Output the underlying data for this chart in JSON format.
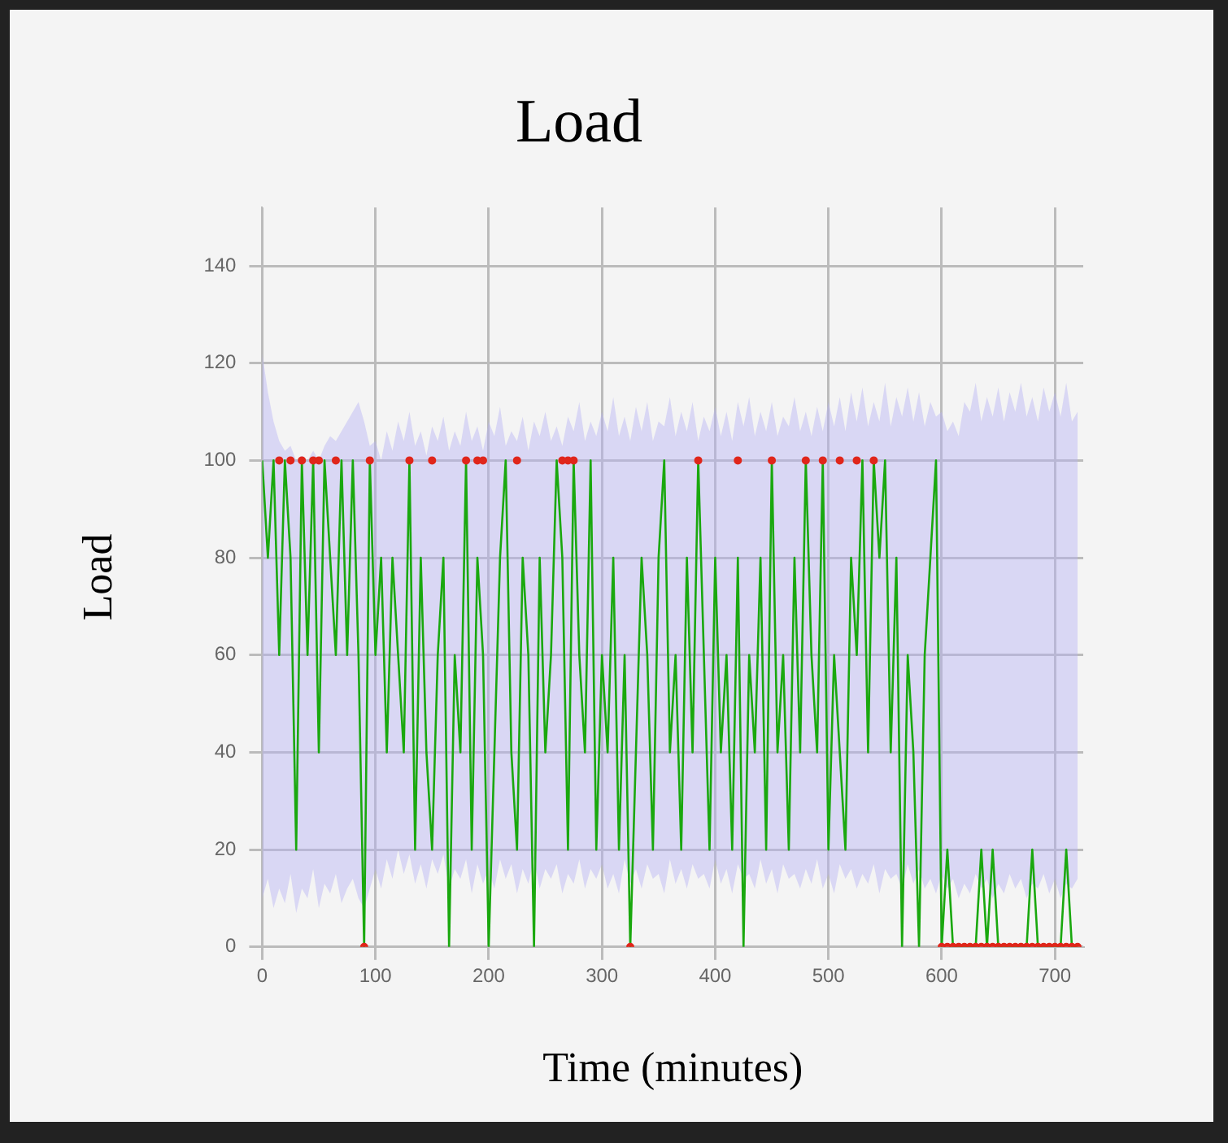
{
  "chart_data": {
    "type": "line",
    "title": "Load",
    "xlabel": "Time (minutes)",
    "ylabel": "Load",
    "xlim": [
      0,
      725
    ],
    "xticks": [
      0,
      100,
      200,
      300,
      400,
      500,
      600,
      700
    ],
    "ylim": [
      0,
      152
    ],
    "yticks": [
      0,
      20,
      40,
      60,
      80,
      100,
      120,
      140
    ],
    "grid": true,
    "x": [
      0,
      5,
      10,
      15,
      20,
      25,
      30,
      35,
      40,
      45,
      50,
      55,
      60,
      65,
      70,
      75,
      80,
      85,
      90,
      95,
      100,
      105,
      110,
      115,
      120,
      125,
      130,
      135,
      140,
      145,
      150,
      155,
      160,
      165,
      170,
      175,
      180,
      185,
      190,
      195,
      200,
      205,
      210,
      215,
      220,
      225,
      230,
      235,
      240,
      245,
      250,
      255,
      260,
      265,
      270,
      275,
      280,
      285,
      290,
      295,
      300,
      305,
      310,
      315,
      320,
      325,
      330,
      335,
      340,
      345,
      350,
      355,
      360,
      365,
      370,
      375,
      380,
      385,
      390,
      395,
      400,
      405,
      410,
      415,
      420,
      425,
      430,
      435,
      440,
      445,
      450,
      455,
      460,
      465,
      470,
      475,
      480,
      485,
      490,
      495,
      500,
      505,
      510,
      515,
      520,
      525,
      530,
      535,
      540,
      545,
      550,
      555,
      560,
      565,
      570,
      575,
      580,
      585,
      590,
      595,
      600,
      605,
      610,
      615,
      620,
      625,
      630,
      635,
      640,
      645,
      650,
      655,
      660,
      665,
      670,
      675,
      680,
      685,
      690,
      695,
      700,
      705,
      710,
      715,
      720
    ],
    "series": [
      {
        "type": "line",
        "color": "#1aa80e",
        "values": [
          100,
          80,
          100,
          60,
          100,
          80,
          20,
          100,
          60,
          100,
          40,
          100,
          80,
          60,
          100,
          60,
          100,
          60,
          0,
          100,
          60,
          80,
          40,
          80,
          60,
          40,
          100,
          20,
          80,
          40,
          20,
          60,
          80,
          0,
          60,
          40,
          100,
          20,
          80,
          60,
          0,
          40,
          80,
          100,
          40,
          20,
          80,
          60,
          0,
          80,
          40,
          60,
          100,
          80,
          20,
          100,
          60,
          40,
          100,
          20,
          60,
          40,
          80,
          20,
          60,
          0,
          40,
          80,
          60,
          20,
          80,
          100,
          40,
          60,
          20,
          80,
          40,
          100,
          60,
          20,
          80,
          40,
          60,
          20,
          80,
          0,
          60,
          40,
          80,
          20,
          100,
          40,
          60,
          20,
          80,
          40,
          100,
          60,
          40,
          100,
          20,
          60,
          40,
          20,
          80,
          60,
          100,
          40,
          100,
          80,
          100,
          40,
          80,
          0,
          60,
          40,
          0,
          60,
          80,
          100,
          0,
          20,
          0,
          0,
          0,
          0,
          0,
          20,
          0,
          20,
          0,
          0,
          0,
          0,
          0,
          0,
          20,
          0,
          0,
          0,
          0,
          0,
          20,
          0,
          0
        ],
        "upper": [
          122,
          114,
          108,
          104,
          102,
          103,
          100,
          101,
          100,
          102,
          100,
          103,
          105,
          104,
          106,
          108,
          110,
          112,
          108,
          103,
          104,
          100,
          106,
          102,
          108,
          104,
          110,
          103,
          106,
          101,
          107,
          104,
          109,
          102,
          106,
          103,
          110,
          104,
          107,
          102,
          108,
          105,
          111,
          103,
          106,
          104,
          109,
          102,
          108,
          105,
          110,
          104,
          107,
          103,
          109,
          106,
          112,
          104,
          108,
          105,
          110,
          106,
          113,
          105,
          109,
          104,
          111,
          106,
          112,
          104,
          108,
          107,
          113,
          105,
          110,
          106,
          112,
          104,
          109,
          106,
          111,
          105,
          110,
          104,
          112,
          107,
          113,
          105,
          110,
          106,
          112,
          105,
          109,
          107,
          113,
          106,
          110,
          105,
          111,
          106,
          112,
          107,
          113,
          106,
          114,
          108,
          115,
          107,
          112,
          108,
          116,
          107,
          113,
          109,
          115,
          108,
          114,
          107,
          112,
          109,
          110,
          106,
          108,
          105,
          112,
          110,
          116,
          108,
          113,
          109,
          115,
          108,
          114,
          110,
          116,
          109,
          113,
          108,
          115,
          110,
          114,
          109,
          116,
          108,
          110
        ],
        "lower": [
          10,
          14,
          8,
          12,
          9,
          15,
          7,
          12,
          10,
          16,
          8,
          13,
          11,
          15,
          9,
          12,
          14,
          10,
          8,
          12,
          16,
          12,
          18,
          14,
          20,
          15,
          19,
          13,
          17,
          12,
          18,
          15,
          19,
          12,
          16,
          14,
          18,
          11,
          17,
          13,
          16,
          12,
          18,
          14,
          17,
          11,
          16,
          13,
          18,
          12,
          16,
          14,
          17,
          11,
          15,
          13,
          18,
          12,
          16,
          14,
          17,
          12,
          15,
          11,
          18,
          13,
          16,
          12,
          17,
          14,
          15,
          11,
          18,
          13,
          16,
          12,
          17,
          14,
          15,
          12,
          18,
          13,
          16,
          11,
          17,
          14,
          15,
          12,
          18,
          13,
          16,
          11,
          17,
          14,
          15,
          12,
          16,
          13,
          18,
          12,
          15,
          11,
          17,
          14,
          16,
          12,
          15,
          13,
          17,
          11,
          16,
          14,
          15,
          12,
          17,
          13,
          16,
          12,
          14,
          11,
          15,
          12,
          14,
          10,
          13,
          11,
          15,
          12,
          14,
          10,
          13,
          11,
          15,
          12,
          14,
          10,
          13,
          12,
          15,
          11,
          14,
          10,
          13,
          12,
          14
        ]
      },
      {
        "type": "scatter",
        "color": "#e0261b",
        "x": [
          15,
          25,
          35,
          45,
          50,
          65,
          95,
          90,
          130,
          150,
          180,
          190,
          195,
          225,
          265,
          270,
          275,
          325,
          385,
          420,
          450,
          480,
          495,
          510,
          525,
          540,
          600,
          605,
          610,
          615,
          620,
          625,
          630,
          635,
          640,
          645,
          650,
          655,
          660,
          665,
          670,
          675,
          680,
          685,
          690,
          695,
          700,
          705,
          710,
          715,
          720
        ],
        "values": [
          100,
          100,
          100,
          100,
          100,
          100,
          100,
          0,
          100,
          100,
          100,
          100,
          100,
          100,
          100,
          100,
          100,
          0,
          100,
          100,
          100,
          100,
          100,
          100,
          100,
          100,
          0,
          0,
          0,
          0,
          0,
          0,
          0,
          0,
          0,
          0,
          0,
          0,
          0,
          0,
          0,
          0,
          0,
          0,
          0,
          0,
          0,
          0,
          0,
          0,
          0
        ]
      }
    ]
  }
}
